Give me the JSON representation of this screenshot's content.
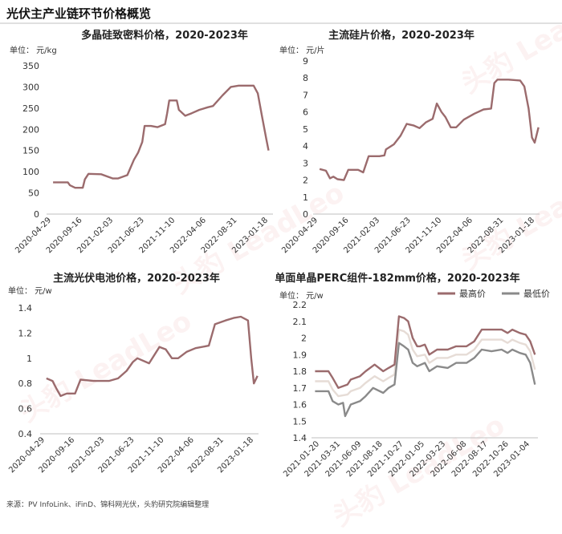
{
  "page": {
    "title": "光伏主产业链环节价格概览",
    "source": "来源：PV InfoLink、iFinD、锦科网光伏，头豹研究院编辑整理",
    "watermark": "头豹 LeadLeo"
  },
  "colors": {
    "max": "#9b6b6d",
    "min": "#8a8a8a"
  },
  "chart_data": [
    {
      "type": "line",
      "title": "多晶硅致密料价格，2020-2023年",
      "unit_label": "单位：",
      "unit": "元/kg",
      "ylim": [
        0,
        350
      ],
      "yticks": [
        0,
        50,
        100,
        150,
        200,
        250,
        300,
        350
      ],
      "xlim": [
        "2020-03-01",
        "2023-02-10"
      ],
      "xtick_labels": [
        "2020-04-29",
        "2020-09-16",
        "2021-02-03",
        "2021-06-23",
        "2021-11-10",
        "2022-04-06",
        "2022-08-31",
        "2023-01-18"
      ],
      "series": [
        {
          "name": "",
          "points": [
            [
              "2020-04-01",
              75
            ],
            [
              "2020-06-10",
              75
            ],
            [
              "2020-06-20",
              68
            ],
            [
              "2020-07-15",
              62
            ],
            [
              "2020-08-20",
              62
            ],
            [
              "2020-08-30",
              82
            ],
            [
              "2020-09-16",
              95
            ],
            [
              "2020-11-15",
              94
            ],
            [
              "2021-01-10",
              84
            ],
            [
              "2021-02-03",
              84
            ],
            [
              "2021-03-20",
              92
            ],
            [
              "2021-04-20",
              128
            ],
            [
              "2021-05-10",
              145
            ],
            [
              "2021-05-30",
              170
            ],
            [
              "2021-06-10",
              208
            ],
            [
              "2021-07-10",
              208
            ],
            [
              "2021-08-10",
              205
            ],
            [
              "2021-09-15",
              212
            ],
            [
              "2021-09-25",
              238
            ],
            [
              "2021-10-05",
              268
            ],
            [
              "2021-11-10",
              268
            ],
            [
              "2021-11-20",
              246
            ],
            [
              "2021-12-20",
              232
            ],
            [
              "2022-01-20",
              238
            ],
            [
              "2022-02-25",
              246
            ],
            [
              "2022-04-06",
              252
            ],
            [
              "2022-05-01",
              255
            ],
            [
              "2022-06-15",
              280
            ],
            [
              "2022-07-25",
              300
            ],
            [
              "2022-08-31",
              303
            ],
            [
              "2022-11-10",
              303
            ],
            [
              "2022-11-30",
              285
            ],
            [
              "2022-12-20",
              230
            ],
            [
              "2023-01-10",
              175
            ],
            [
              "2023-01-20",
              150
            ]
          ]
        }
      ]
    },
    {
      "type": "line",
      "title": "主流硅片价格，2020-2023年",
      "unit_label": "单位：",
      "unit": "元/片",
      "ylim": [
        0,
        9
      ],
      "yticks": [
        0,
        1,
        2,
        3,
        4,
        5,
        6,
        7,
        8,
        9
      ],
      "xlim": [
        "2020-03-01",
        "2023-02-10"
      ],
      "xtick_labels": [
        "2020-04-29",
        "2020-09-16",
        "2021-02-03",
        "2021-06-23",
        "2021-11-10",
        "2022-04-06",
        "2022-08-31",
        "2023-01-18"
      ],
      "series": [
        {
          "name": "",
          "points": [
            [
              "2020-04-01",
              2.65
            ],
            [
              "2020-05-01",
              2.55
            ],
            [
              "2020-05-20",
              2.1
            ],
            [
              "2020-06-05",
              2.2
            ],
            [
              "2020-06-25",
              2.05
            ],
            [
              "2020-07-25",
              2.0
            ],
            [
              "2020-08-15",
              2.6
            ],
            [
              "2020-10-01",
              2.6
            ],
            [
              "2020-10-25",
              2.45
            ],
            [
              "2020-11-20",
              3.4
            ],
            [
              "2021-01-10",
              3.4
            ],
            [
              "2021-02-03",
              3.45
            ],
            [
              "2021-02-10",
              3.8
            ],
            [
              "2021-03-20",
              4.1
            ],
            [
              "2021-04-20",
              4.6
            ],
            [
              "2021-05-20",
              5.3
            ],
            [
              "2021-06-23",
              5.2
            ],
            [
              "2021-07-20",
              5.05
            ],
            [
              "2021-08-20",
              5.4
            ],
            [
              "2021-09-20",
              5.6
            ],
            [
              "2021-10-10",
              6.5
            ],
            [
              "2021-11-01",
              6.0
            ],
            [
              "2021-11-20",
              5.7
            ],
            [
              "2021-12-15",
              5.1
            ],
            [
              "2022-01-10",
              5.1
            ],
            [
              "2022-02-15",
              5.55
            ],
            [
              "2022-04-06",
              5.9
            ],
            [
              "2022-05-20",
              6.15
            ],
            [
              "2022-06-25",
              6.2
            ],
            [
              "2022-07-10",
              7.7
            ],
            [
              "2022-07-25",
              7.9
            ],
            [
              "2022-09-15",
              7.9
            ],
            [
              "2022-11-10",
              7.85
            ],
            [
              "2022-11-30",
              7.5
            ],
            [
              "2022-12-20",
              6.2
            ],
            [
              "2023-01-05",
              4.5
            ],
            [
              "2023-01-18",
              4.2
            ],
            [
              "2023-02-05",
              5.1
            ]
          ]
        }
      ]
    },
    {
      "type": "line",
      "title": "主流光伏电池价格，2020-2023年",
      "unit_label": "单位：",
      "unit": "元/w",
      "ylim": [
        0.4,
        1.4
      ],
      "yticks": [
        0.4,
        0.6,
        0.8,
        1.0,
        1.2,
        1.4
      ],
      "ytick_labels": [
        "0.4",
        "0.6",
        "0.8",
        "1",
        "1.2",
        "1.4"
      ],
      "xlim": [
        "2020-03-01",
        "2023-02-10"
      ],
      "xtick_labels": [
        "2020-04-29",
        "2020-09-16",
        "2021-02-03",
        "2021-06-23",
        "2021-11-10",
        "2022-04-06",
        "2022-08-31",
        "2023-01-18"
      ],
      "series": [
        {
          "name": "",
          "points": [
            [
              "2020-04-01",
              0.84
            ],
            [
              "2020-05-01",
              0.82
            ],
            [
              "2020-05-20",
              0.76
            ],
            [
              "2020-06-10",
              0.7
            ],
            [
              "2020-07-10",
              0.72
            ],
            [
              "2020-08-20",
              0.72
            ],
            [
              "2020-09-16",
              0.83
            ],
            [
              "2020-11-20",
              0.82
            ],
            [
              "2021-01-10",
              0.82
            ],
            [
              "2021-02-03",
              0.82
            ],
            [
              "2021-03-20",
              0.84
            ],
            [
              "2021-05-01",
              0.9
            ],
            [
              "2021-06-01",
              0.97
            ],
            [
              "2021-06-23",
              1.0
            ],
            [
              "2021-08-20",
              0.96
            ],
            [
              "2021-10-10",
              1.09
            ],
            [
              "2021-11-10",
              1.07
            ],
            [
              "2021-12-10",
              1.0
            ],
            [
              "2022-01-10",
              1.0
            ],
            [
              "2022-02-20",
              1.05
            ],
            [
              "2022-04-06",
              1.08
            ],
            [
              "2022-06-10",
              1.1
            ],
            [
              "2022-07-10",
              1.27
            ],
            [
              "2022-08-31",
              1.3
            ],
            [
              "2022-10-10",
              1.32
            ],
            [
              "2022-11-15",
              1.33
            ],
            [
              "2022-12-20",
              1.3
            ],
            [
              "2023-01-05",
              1.0
            ],
            [
              "2023-01-18",
              0.8
            ],
            [
              "2023-02-05",
              0.86
            ]
          ]
        }
      ]
    },
    {
      "type": "line",
      "title": "单面单晶PERC组件-182mm价格，2020-2023年",
      "unit_label": "单位：",
      "unit": "元/w",
      "ylim": [
        1.4,
        2.2
      ],
      "yticks": [
        1.4,
        1.5,
        1.6,
        1.7,
        1.8,
        1.9,
        2.0,
        2.1,
        2.2
      ],
      "ytick_labels": [
        "1.4",
        "1.5",
        "1.6",
        "1.7",
        "1.8",
        "1.9",
        "2",
        "2.1",
        "2.2"
      ],
      "xlim": [
        "2020-12-20",
        "2023-01-20"
      ],
      "xtick_labels": [
        "2021-01-20",
        "2021-03-31",
        "2021-06-09",
        "2021-08-18",
        "2021-10-27",
        "2022-01-05",
        "2022-03-23",
        "2022-06-08",
        "2022-08-17",
        "2022-10-26",
        "2023-01-04"
      ],
      "legend_position": "top-right",
      "series": [
        {
          "name": "最高价",
          "color_key": "max",
          "points": [
            [
              "2021-01-01",
              1.8
            ],
            [
              "2021-02-15",
              1.8
            ],
            [
              "2021-03-01",
              1.76
            ],
            [
              "2021-03-20",
              1.7
            ],
            [
              "2021-04-20",
              1.72
            ],
            [
              "2021-05-01",
              1.75
            ],
            [
              "2021-06-01",
              1.77
            ],
            [
              "2021-06-20",
              1.8
            ],
            [
              "2021-07-20",
              1.84
            ],
            [
              "2021-08-18",
              1.8
            ],
            [
              "2021-09-05",
              1.82
            ],
            [
              "2021-09-25",
              1.84
            ],
            [
              "2021-10-10",
              2.13
            ],
            [
              "2021-10-27",
              2.12
            ],
            [
              "2021-11-10",
              2.1
            ],
            [
              "2021-11-25",
              2.0
            ],
            [
              "2021-12-10",
              1.95
            ],
            [
              "2021-12-20",
              1.95
            ],
            [
              "2022-01-05",
              1.96
            ],
            [
              "2022-01-20",
              1.9
            ],
            [
              "2022-02-15",
              1.93
            ],
            [
              "2022-03-23",
              1.93
            ],
            [
              "2022-04-20",
              1.95
            ],
            [
              "2022-05-25",
              1.95
            ],
            [
              "2022-06-20",
              1.98
            ],
            [
              "2022-07-15",
              2.05
            ],
            [
              "2022-08-17",
              2.05
            ],
            [
              "2022-09-20",
              2.05
            ],
            [
              "2022-10-10",
              2.03
            ],
            [
              "2022-10-26",
              2.05
            ],
            [
              "2022-11-20",
              2.03
            ],
            [
              "2022-12-10",
              2.02
            ],
            [
              "2022-12-25",
              1.98
            ],
            [
              "2023-01-10",
              1.9
            ]
          ]
        },
        {
          "name": "最低价",
          "color_key": "min",
          "points": [
            [
              "2021-01-01",
              1.68
            ],
            [
              "2021-02-15",
              1.68
            ],
            [
              "2021-03-01",
              1.62
            ],
            [
              "2021-03-20",
              1.6
            ],
            [
              "2021-04-05",
              1.61
            ],
            [
              "2021-04-12",
              1.53
            ],
            [
              "2021-05-01",
              1.6
            ],
            [
              "2021-06-01",
              1.62
            ],
            [
              "2021-06-20",
              1.65
            ],
            [
              "2021-07-15",
              1.7
            ],
            [
              "2021-08-18",
              1.67
            ],
            [
              "2021-09-05",
              1.7
            ],
            [
              "2021-09-25",
              1.72
            ],
            [
              "2021-10-10",
              1.97
            ],
            [
              "2021-10-27",
              1.95
            ],
            [
              "2021-11-10",
              1.93
            ],
            [
              "2021-11-25",
              1.85
            ],
            [
              "2021-12-10",
              1.83
            ],
            [
              "2022-01-05",
              1.85
            ],
            [
              "2022-01-20",
              1.8
            ],
            [
              "2022-02-15",
              1.83
            ],
            [
              "2022-03-23",
              1.82
            ],
            [
              "2022-04-20",
              1.85
            ],
            [
              "2022-05-25",
              1.85
            ],
            [
              "2022-06-20",
              1.88
            ],
            [
              "2022-07-15",
              1.93
            ],
            [
              "2022-08-17",
              1.92
            ],
            [
              "2022-09-20",
              1.93
            ],
            [
              "2022-10-10",
              1.91
            ],
            [
              "2022-10-26",
              1.93
            ],
            [
              "2022-11-20",
              1.91
            ],
            [
              "2022-12-10",
              1.9
            ],
            [
              "2022-12-25",
              1.85
            ],
            [
              "2023-01-10",
              1.72
            ]
          ]
        },
        {
          "name": "",
          "color_key": "mid",
          "points": [
            [
              "2021-01-01",
              1.74
            ],
            [
              "2021-02-15",
              1.74
            ],
            [
              "2021-03-01",
              1.69
            ],
            [
              "2021-03-20",
              1.65
            ],
            [
              "2021-04-20",
              1.66
            ],
            [
              "2021-05-01",
              1.68
            ],
            [
              "2021-06-01",
              1.7
            ],
            [
              "2021-06-20",
              1.73
            ],
            [
              "2021-07-20",
              1.77
            ],
            [
              "2021-08-18",
              1.74
            ],
            [
              "2021-09-05",
              1.76
            ],
            [
              "2021-09-25",
              1.78
            ],
            [
              "2021-10-10",
              2.05
            ],
            [
              "2021-10-27",
              2.04
            ],
            [
              "2021-11-10",
              2.02
            ],
            [
              "2021-11-25",
              1.93
            ],
            [
              "2021-12-10",
              1.89
            ],
            [
              "2022-01-05",
              1.9
            ],
            [
              "2022-01-20",
              1.85
            ],
            [
              "2022-02-15",
              1.88
            ],
            [
              "2022-03-23",
              1.88
            ],
            [
              "2022-04-20",
              1.9
            ],
            [
              "2022-05-25",
              1.9
            ],
            [
              "2022-06-20",
              1.93
            ],
            [
              "2022-07-15",
              1.99
            ],
            [
              "2022-08-17",
              1.99
            ],
            [
              "2022-09-20",
              1.99
            ],
            [
              "2022-10-10",
              1.97
            ],
            [
              "2022-10-26",
              1.99
            ],
            [
              "2022-11-20",
              1.97
            ],
            [
              "2022-12-10",
              1.96
            ],
            [
              "2022-12-25",
              1.92
            ],
            [
              "2023-01-10",
              1.81
            ]
          ]
        }
      ]
    }
  ]
}
